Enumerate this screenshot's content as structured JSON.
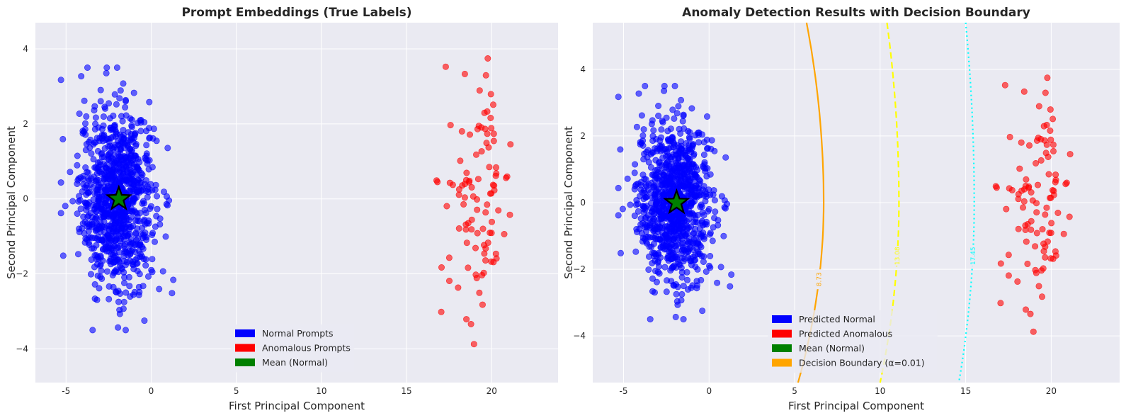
{
  "chart_data": [
    {
      "type": "scatter",
      "title": "Prompt Embeddings (True Labels)",
      "xlabel": "First Principal Component",
      "ylabel": "Second Principal Component",
      "xlim": [
        -6.8,
        23.9
      ],
      "ylim": [
        -4.9,
        4.7
      ],
      "xticks": [
        -5,
        0,
        5,
        10,
        15,
        20
      ],
      "yticks": [
        -4,
        -2,
        0,
        2,
        4
      ],
      "grid": true,
      "legend_position": "bottom-center",
      "legend": [
        {
          "label": "Normal Prompts",
          "color": "#0000ff"
        },
        {
          "label": "Anomalous Prompts",
          "color": "#ff0000"
        },
        {
          "label": "Mean (Normal)",
          "color": "#008000"
        }
      ],
      "series": [
        {
          "name": "Normal Prompts",
          "color": "#0000ff",
          "distribution": "cluster",
          "count": 950,
          "center": [
            -2.0,
            0.0
          ],
          "spread": [
            1.1,
            1.2
          ],
          "extent_x": [
            -5.3,
            2.5
          ],
          "extent_y": [
            -3.5,
            3.5
          ]
        },
        {
          "name": "Anomalous Prompts",
          "color": "#ff0000",
          "distribution": "cluster",
          "count": 100,
          "center": [
            19.2,
            0.0
          ],
          "spread": [
            1.0,
            1.6
          ],
          "extent_x": [
            16.7,
            22.5
          ],
          "extent_y": [
            -4.5,
            4.3
          ]
        }
      ],
      "marker": {
        "name": "Mean (Normal)",
        "x": -1.9,
        "y": 0.0,
        "shape": "star",
        "color": "#008000"
      }
    },
    {
      "type": "scatter",
      "title": "Anomaly Detection Results with Decision Boundary",
      "xlabel": "First Principal Component",
      "ylabel": "Second Principal Component",
      "xlim": [
        -6.8,
        24.0
      ],
      "ylim": [
        -5.4,
        5.4
      ],
      "xticks": [
        -5,
        0,
        5,
        10,
        15,
        20
      ],
      "yticks": [
        -4,
        -2,
        0,
        2,
        4
      ],
      "grid": true,
      "legend_position": "bottom-center",
      "legend": [
        {
          "label": "Predicted Normal",
          "color": "#0000ff"
        },
        {
          "label": "Predicted Anomalous",
          "color": "#ff0000"
        },
        {
          "label": "Mean (Normal)",
          "color": "#008000"
        },
        {
          "label": "Decision Boundary (α=0.01)",
          "color": "#ffa500"
        }
      ],
      "series": [
        {
          "name": "Predicted Normal",
          "color": "#0000ff",
          "distribution": "cluster",
          "count": 950,
          "center": [
            -2.0,
            0.0
          ],
          "spread": [
            1.1,
            1.2
          ],
          "extent_x": [
            -5.3,
            2.5
          ],
          "extent_y": [
            -3.5,
            3.5
          ]
        },
        {
          "name": "Predicted Anomalous",
          "color": "#ff0000",
          "distribution": "cluster",
          "count": 100,
          "center": [
            19.2,
            0.0
          ],
          "spread": [
            1.0,
            1.6
          ],
          "extent_x": [
            16.7,
            22.5
          ],
          "extent_y": [
            -4.5,
            4.3
          ]
        }
      ],
      "marker": {
        "name": "Mean (Normal)",
        "x": -1.9,
        "y": 0.0,
        "shape": "star",
        "color": "#008000"
      },
      "contours": [
        {
          "level": "8.73",
          "color": "#ffa500",
          "style": "solid",
          "x_at_zero": 6.7,
          "x_top": 5.7,
          "x_bottom": 5.2,
          "label_y": -2.3
        },
        {
          "level": "13.08",
          "color": "#ffff00",
          "style": "dashed",
          "x_at_zero": 11.1,
          "x_top": 10.4,
          "x_bottom": 10.0,
          "label_y": -1.6
        },
        {
          "level": "17.45",
          "color": "#00ffff",
          "style": "dotted",
          "x_at_zero": 15.5,
          "x_top": 15.0,
          "x_bottom": 14.6,
          "label_y": -1.6
        }
      ]
    }
  ]
}
